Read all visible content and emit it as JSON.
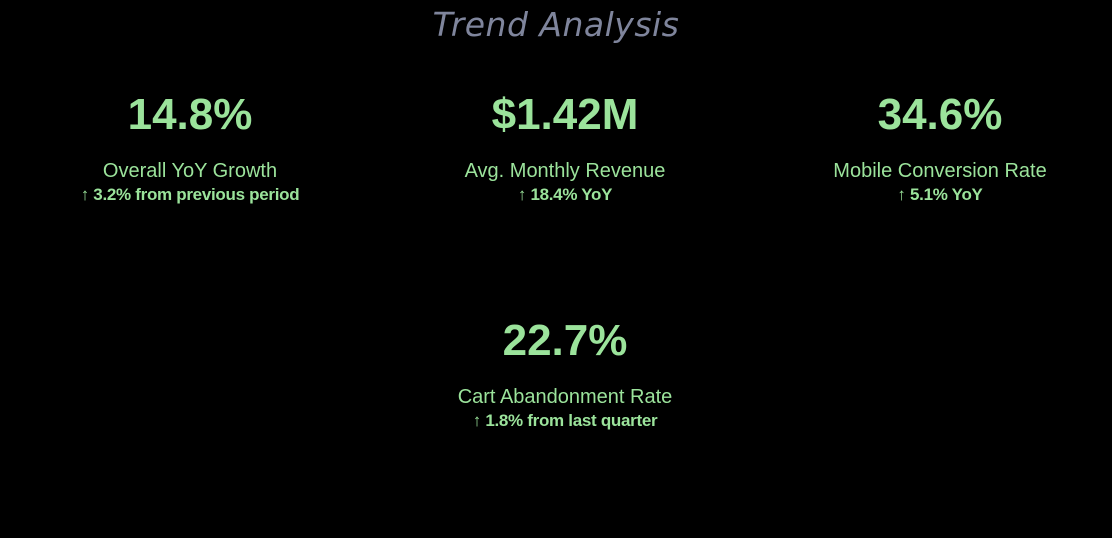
{
  "title": "Trend Analysis",
  "colors": {
    "background": "#000000",
    "title": "#7f859c",
    "accent": "#9be39b"
  },
  "metrics": [
    {
      "value": "14.8%",
      "label": "Overall YoY Growth",
      "change": "↑ 3.2% from previous period"
    },
    {
      "value": "$1.42M",
      "label": "Avg. Monthly Revenue",
      "change": "↑ 18.4% YoY"
    },
    {
      "value": "34.6%",
      "label": "Mobile Conversion Rate",
      "change": "↑ 5.1% YoY"
    },
    {
      "value": "22.7%",
      "label": "Cart Abandonment Rate",
      "change": "↑ 1.8% from last quarter"
    }
  ]
}
